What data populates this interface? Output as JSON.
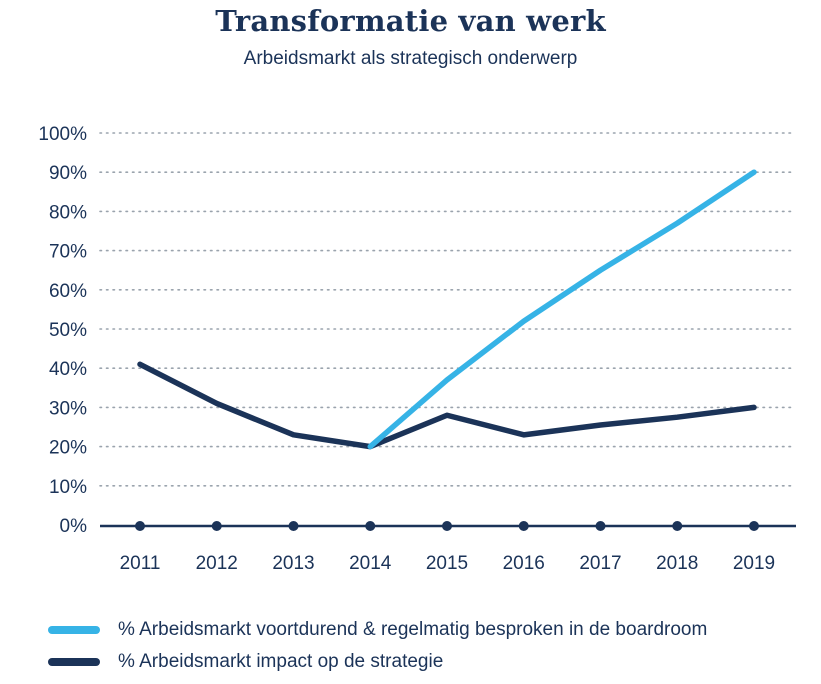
{
  "title": "Transformatie van werk",
  "subtitle": "Arbeidsmarkt als strategisch onderwerp",
  "colors": {
    "light_blue": "#36b3e6",
    "dark_navy": "#1b3358",
    "grid": "#9aa3ad"
  },
  "chart_data": {
    "type": "line",
    "categories": [
      "2011",
      "2012",
      "2013",
      "2014",
      "2015",
      "2016",
      "2017",
      "2018",
      "2019"
    ],
    "y_ticks": [
      "0%",
      "10%",
      "20%",
      "30%",
      "40%",
      "50%",
      "60%",
      "70%",
      "80%",
      "90%",
      "100%"
    ],
    "ylim": [
      0,
      100
    ],
    "grid": "horizontal dotted",
    "legend_position": "bottom",
    "series": [
      {
        "name": "% Arbeidsmarkt voortdurend & regelmatig besproken in de boardroom",
        "color": "#36b3e6",
        "values": [
          null,
          null,
          null,
          20,
          37,
          52,
          65,
          77,
          90
        ]
      },
      {
        "name": "% Arbeidsmarkt impact op de strategie",
        "color": "#1b3358",
        "values": [
          41,
          31,
          23,
          20,
          28,
          23,
          25.5,
          27.5,
          30
        ]
      }
    ]
  }
}
